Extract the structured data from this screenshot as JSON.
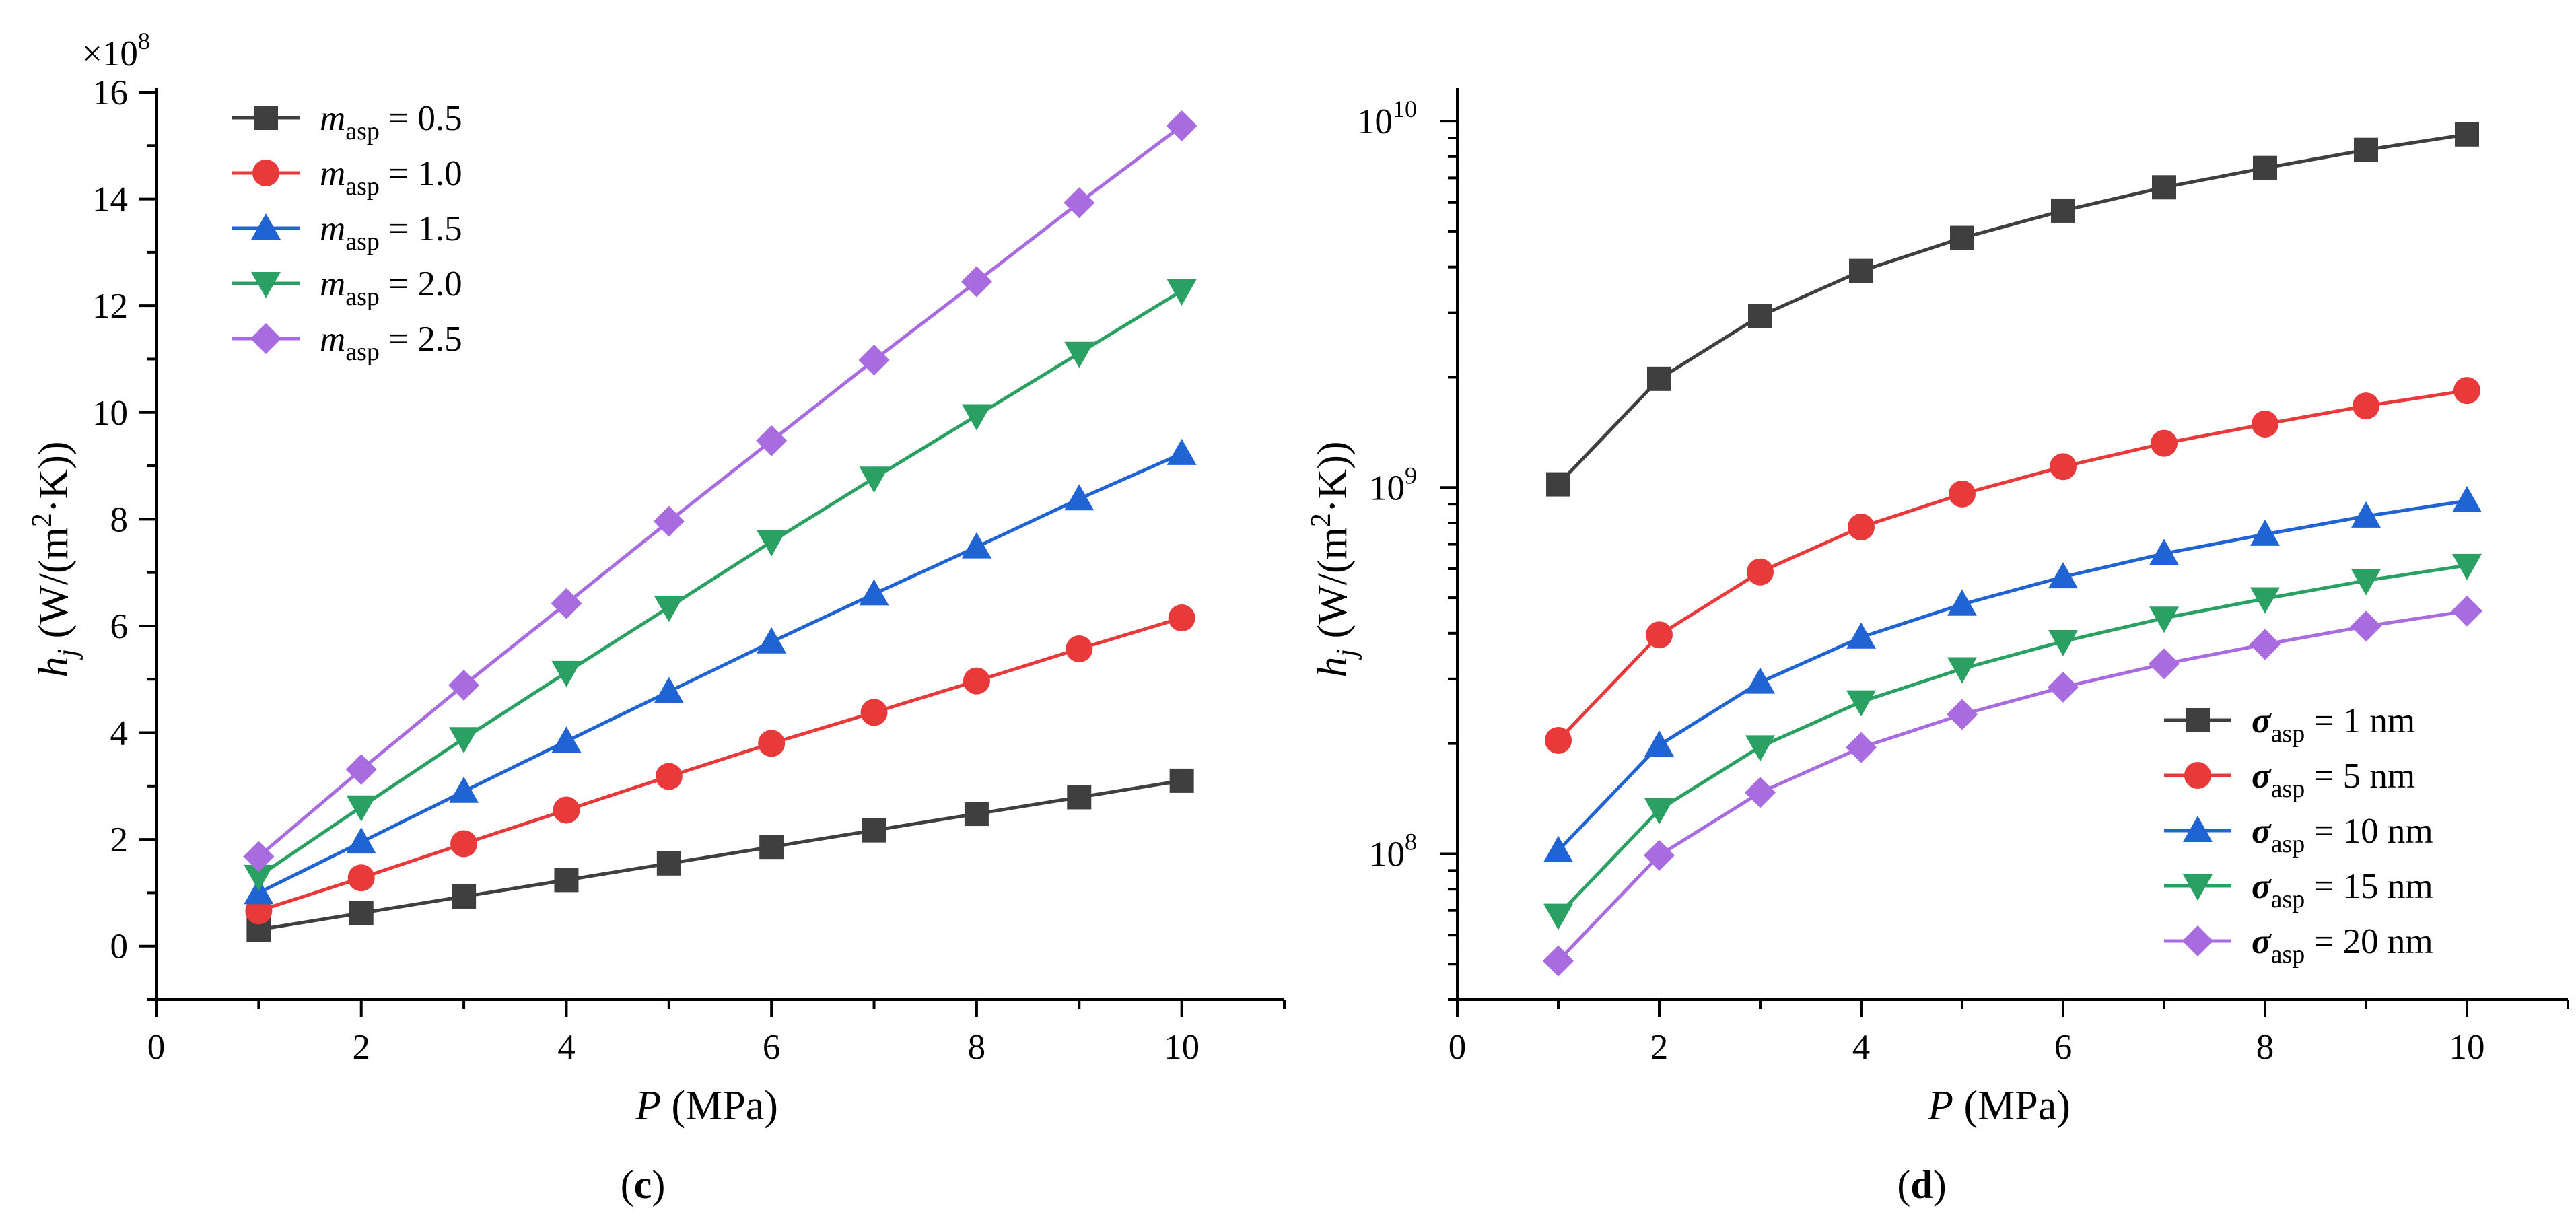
{
  "chart_data": [
    {
      "panel": "c",
      "type": "line",
      "scale": "linear",
      "multiplier": "×10",
      "multiplier_exp": "8",
      "x": [
        1,
        2,
        3,
        4,
        5,
        6,
        7,
        8,
        9,
        10
      ],
      "xlim": [
        0,
        11
      ],
      "ylim": [
        -1,
        16
      ],
      "xticks": [
        "0",
        "2",
        "4",
        "6",
        "8",
        "10"
      ],
      "yticks": [
        "0",
        "2",
        "4",
        "6",
        "8",
        "10",
        "12",
        "14",
        "16"
      ],
      "xlabel": {
        "italic": "P",
        "rest": " (MPa)"
      },
      "ylabel": {
        "italic": "h",
        "sub": "j",
        "pre": " (W/(m",
        "sup": "2",
        "post": "·K))"
      },
      "legend_position": "top-left",
      "series": [
        {
          "name": "m_asp = 0.5",
          "symbol": "m",
          "sub": "asp",
          "value": " = 0.5",
          "color": "#3f3f3f",
          "marker": "square",
          "values": [
            0.31,
            0.62,
            0.93,
            1.24,
            1.55,
            1.86,
            2.17,
            2.48,
            2.79,
            3.1
          ]
        },
        {
          "name": "m_asp = 1.0",
          "symbol": "m",
          "sub": "asp",
          "value": " = 1.0",
          "color": "#e83a3a",
          "marker": "circle",
          "values": [
            0.66,
            1.28,
            1.92,
            2.55,
            3.18,
            3.8,
            4.38,
            4.97,
            5.57,
            6.15
          ]
        },
        {
          "name": "m_asp = 1.5",
          "symbol": "m",
          "sub": "asp",
          "value": " = 1.5",
          "color": "#1f64d2",
          "marker": "triangle-up",
          "values": [
            1.0,
            1.95,
            2.9,
            3.84,
            4.77,
            5.7,
            6.6,
            7.48,
            8.38,
            9.23
          ]
        },
        {
          "name": "m_asp = 2.0",
          "symbol": "m",
          "sub": "asp",
          "value": " = 2.0",
          "color": "#2aa063",
          "marker": "triangle-down",
          "values": [
            1.31,
            2.61,
            3.89,
            5.13,
            6.35,
            7.58,
            8.77,
            9.94,
            11.11,
            12.28
          ]
        },
        {
          "name": "m_asp = 2.5",
          "symbol": "m",
          "sub": "asp",
          "value": " = 2.5",
          "color": "#a86be0",
          "marker": "diamond",
          "values": [
            1.68,
            3.31,
            4.89,
            6.42,
            7.96,
            9.47,
            10.98,
            12.45,
            13.93,
            15.37
          ]
        }
      ],
      "panel_label": "c"
    },
    {
      "panel": "d",
      "type": "line",
      "scale": "log",
      "x": [
        1,
        2,
        3,
        4,
        5,
        6,
        7,
        8,
        9,
        10
      ],
      "xlim": [
        0,
        11
      ],
      "ylim": [
        40000000,
        12000000000
      ],
      "xticks": [
        "0",
        "2",
        "4",
        "6",
        "8",
        "10"
      ],
      "yticks": [
        {
          "base": "10",
          "exp": "8",
          "value": 100000000
        },
        {
          "base": "10",
          "exp": "9",
          "value": 1000000000
        },
        {
          "base": "10",
          "exp": "10",
          "value": 10000000000
        }
      ],
      "xlabel": {
        "italic": "P",
        "rest": " (MPa)"
      },
      "ylabel": {
        "italic": "h",
        "sub": "j",
        "pre": " (W/(m",
        "sup": "2",
        "post": "·K))"
      },
      "legend_position": "bottom-right",
      "series": [
        {
          "name": "σ_asp = 1 nm",
          "symbol": "σ",
          "sub": "asp",
          "value": " = 1 nm",
          "color": "#3f3f3f",
          "marker": "square",
          "values": [
            1020000000,
            1980000000,
            2940000000,
            3900000000,
            4800000000,
            5700000000,
            6600000000,
            7450000000,
            8350000000,
            9200000000
          ]
        },
        {
          "name": "σ_asp = 5 nm",
          "symbol": "σ",
          "sub": "asp",
          "value": " = 5 nm",
          "color": "#e83a3a",
          "marker": "circle",
          "values": [
            204000000,
            396000000,
            588000000,
            780000000,
            960000000,
            1140000000,
            1320000000,
            1490000000,
            1670000000,
            1840000000
          ]
        },
        {
          "name": "σ_asp = 10 nm",
          "symbol": "σ",
          "sub": "asp",
          "value": " = 10 nm",
          "color": "#1f64d2",
          "marker": "triangle-up",
          "values": [
            102000000,
            198000000,
            294000000,
            390000000,
            480000000,
            570000000,
            660000000,
            745000000,
            835000000,
            920000000
          ]
        },
        {
          "name": "σ_asp = 15 nm",
          "symbol": "σ",
          "sub": "asp",
          "value": " = 15 nm",
          "color": "#2aa063",
          "marker": "triangle-down",
          "values": [
            68000000,
            132000000,
            196000000,
            260000000,
            320000000,
            380000000,
            440000000,
            497000000,
            557000000,
            613000000
          ]
        },
        {
          "name": "σ_asp = 20 nm",
          "symbol": "σ",
          "sub": "asp",
          "value": " = 20 nm",
          "color": "#a86be0",
          "marker": "diamond",
          "values": [
            51000000,
            99000000,
            147000000,
            195000000,
            240000000,
            285000000,
            330000000,
            373000000,
            418000000,
            460000000
          ]
        }
      ],
      "panel_label": "d"
    }
  ]
}
